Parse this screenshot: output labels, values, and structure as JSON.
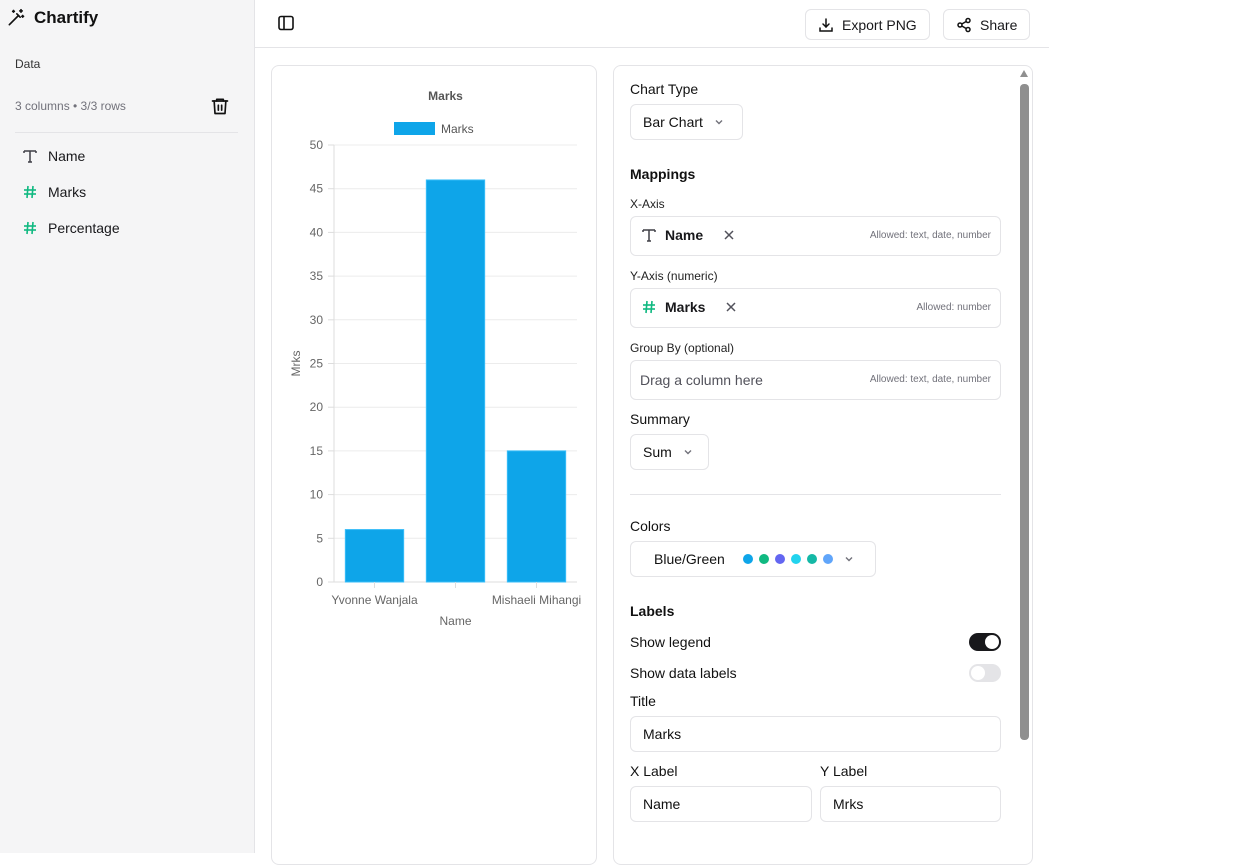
{
  "app": {
    "name": "Chartify"
  },
  "sidebar": {
    "section_label": "Data",
    "columns_info": "3 columns • 3/3 rows",
    "columns": [
      {
        "name": "Name",
        "type": "text",
        "icon": "text-type-icon"
      },
      {
        "name": "Marks",
        "type": "number",
        "icon": "hash-icon"
      },
      {
        "name": "Percentage",
        "type": "number",
        "icon": "hash-icon"
      }
    ]
  },
  "header": {
    "export_label": "Export PNG",
    "share_label": "Share"
  },
  "chart_data": {
    "type": "bar",
    "title": "Marks",
    "categories": [
      "Yvonne Wanjala",
      "",
      "Mishaeli Mihangi"
    ],
    "series": [
      {
        "name": "Marks",
        "values": [
          6,
          46,
          15
        ],
        "color": "#0ea5e9"
      }
    ],
    "xlabel": "Name",
    "ylabel": "Mrks",
    "ylim": [
      0,
      50
    ],
    "yticks": [
      0,
      5,
      10,
      15,
      20,
      25,
      30,
      35,
      40,
      45,
      50
    ],
    "legend": "top",
    "grid": true
  },
  "settings": {
    "chart_type_label": "Chart Type",
    "chart_type_value": "Bar Chart",
    "mappings_label": "Mappings",
    "x_axis_label": "X-Axis",
    "x_axis_value": "Name",
    "x_axis_allowed": "Allowed: text, date, number",
    "y_axis_label": "Y-Axis (numeric)",
    "y_axis_value": "Marks",
    "y_axis_allowed": "Allowed: number",
    "group_by_label": "Group By (optional)",
    "group_by_placeholder": "Drag a column here",
    "group_by_allowed": "Allowed: text, date, number",
    "summary_label": "Summary",
    "summary_value": "Sum",
    "colors_label": "Colors",
    "colors_value": "Blue/Green",
    "palette": [
      "#0ea5e9",
      "#10b981",
      "#6366f1",
      "#22d3ee",
      "#14b8a6",
      "#60a5fa"
    ],
    "labels_label": "Labels",
    "show_legend_label": "Show legend",
    "show_legend": true,
    "show_data_labels_label": "Show data labels",
    "show_data_labels": false,
    "title_label": "Title",
    "title_value": "Marks",
    "x_label_label": "X Label",
    "x_label_value": "Name",
    "y_label_label": "Y Label",
    "y_label_value": "Mrks"
  }
}
